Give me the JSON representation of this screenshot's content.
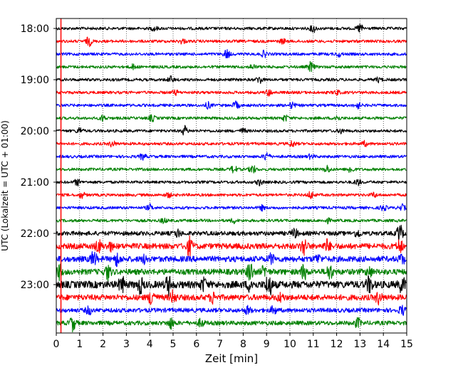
{
  "chart_data": {
    "type": "line",
    "title": "",
    "xlabel": "Zeit  [min]",
    "ylabel": "UTC (Lokalzeit = UTC + 01:00)",
    "xlim": [
      0,
      15
    ],
    "x_ticks": [
      "0",
      "1",
      "2",
      "3",
      "4",
      "5",
      "6",
      "7",
      "8",
      "9",
      "10",
      "11",
      "12",
      "13",
      "14",
      "15"
    ],
    "y_ticks": [
      "18:00",
      "19:00",
      "20:00",
      "21:00",
      "22:00",
      "23:00"
    ],
    "grid": "vertical dotted at each minute",
    "marker_line": {
      "x": 0.2,
      "color": "#ff0000"
    },
    "colors": [
      "#000000",
      "#ff0000",
      "#0000ff",
      "#008000"
    ],
    "series": [
      {
        "time": "18:00",
        "color": "#000000",
        "amplitude": 2,
        "events": [
          {
            "x": 11.0,
            "a": 5
          },
          {
            "x": 13.0,
            "a": 6
          },
          {
            "x": 4.2,
            "a": 3
          }
        ]
      },
      {
        "time": "18:15",
        "color": "#ff0000",
        "amplitude": 2,
        "events": [
          {
            "x": 1.4,
            "a": 6
          },
          {
            "x": 5.4,
            "a": 3
          },
          {
            "x": 9.7,
            "a": 3
          }
        ]
      },
      {
        "time": "18:30",
        "color": "#0000ff",
        "amplitude": 2,
        "events": [
          {
            "x": 7.3,
            "a": 6
          },
          {
            "x": 8.9,
            "a": 4
          },
          {
            "x": 12.1,
            "a": 3
          }
        ]
      },
      {
        "time": "18:45",
        "color": "#008000",
        "amplitude": 2,
        "events": [
          {
            "x": 10.9,
            "a": 7
          },
          {
            "x": 8.4,
            "a": 3
          },
          {
            "x": 3.3,
            "a": 3
          }
        ]
      },
      {
        "time": "19:00",
        "color": "#000000",
        "amplitude": 2,
        "events": [
          {
            "x": 8.7,
            "a": 5
          },
          {
            "x": 4.9,
            "a": 4
          },
          {
            "x": 13.8,
            "a": 3
          }
        ]
      },
      {
        "time": "19:15",
        "color": "#ff0000",
        "amplitude": 2,
        "events": [
          {
            "x": 5.1,
            "a": 3
          },
          {
            "x": 9.1,
            "a": 4
          },
          {
            "x": 12.0,
            "a": 3
          }
        ]
      },
      {
        "time": "19:30",
        "color": "#0000ff",
        "amplitude": 2,
        "events": [
          {
            "x": 6.5,
            "a": 4
          },
          {
            "x": 7.7,
            "a": 5
          },
          {
            "x": 10.1,
            "a": 4
          },
          {
            "x": 12.9,
            "a": 4
          }
        ]
      },
      {
        "time": "19:45",
        "color": "#008000",
        "amplitude": 2,
        "events": [
          {
            "x": 2.0,
            "a": 4
          },
          {
            "x": 4.1,
            "a": 4
          },
          {
            "x": 9.8,
            "a": 4
          },
          {
            "x": 12.0,
            "a": 4
          }
        ]
      },
      {
        "time": "20:00",
        "color": "#000000",
        "amplitude": 2,
        "events": [
          {
            "x": 5.5,
            "a": 6
          },
          {
            "x": 1.0,
            "a": 4
          },
          {
            "x": 8.0,
            "a": 3
          },
          {
            "x": 12.2,
            "a": 3
          }
        ]
      },
      {
        "time": "20:15",
        "color": "#ff0000",
        "amplitude": 2,
        "events": [
          {
            "x": 2.4,
            "a": 4
          },
          {
            "x": 10.1,
            "a": 4
          },
          {
            "x": 13.2,
            "a": 3
          }
        ]
      },
      {
        "time": "20:30",
        "color": "#0000ff",
        "amplitude": 2,
        "events": [
          {
            "x": 3.7,
            "a": 4
          },
          {
            "x": 9.0,
            "a": 6
          },
          {
            "x": 10.9,
            "a": 3
          }
        ]
      },
      {
        "time": "20:45",
        "color": "#008000",
        "amplitude": 2,
        "events": [
          {
            "x": 7.6,
            "a": 5
          },
          {
            "x": 8.4,
            "a": 6
          },
          {
            "x": 11.6,
            "a": 5
          },
          {
            "x": 12.6,
            "a": 5
          }
        ]
      },
      {
        "time": "21:00",
        "color": "#000000",
        "amplitude": 2,
        "events": [
          {
            "x": 0.9,
            "a": 4
          },
          {
            "x": 8.7,
            "a": 4
          },
          {
            "x": 12.9,
            "a": 4
          }
        ]
      },
      {
        "time": "21:15",
        "color": "#ff0000",
        "amplitude": 2,
        "events": [
          {
            "x": 1.1,
            "a": 4
          },
          {
            "x": 4.8,
            "a": 3
          },
          {
            "x": 10.9,
            "a": 5
          },
          {
            "x": 13.6,
            "a": 3
          }
        ]
      },
      {
        "time": "21:30",
        "color": "#0000ff",
        "amplitude": 2,
        "events": [
          {
            "x": 4.0,
            "a": 4
          },
          {
            "x": 8.8,
            "a": 3
          },
          {
            "x": 14.0,
            "a": 4
          },
          {
            "x": 14.8,
            "a": 4
          }
        ]
      },
      {
        "time": "21:45",
        "color": "#008000",
        "amplitude": 2,
        "events": [
          {
            "x": 4.6,
            "a": 3
          },
          {
            "x": 7.6,
            "a": 3
          },
          {
            "x": 11.6,
            "a": 3
          }
        ]
      },
      {
        "time": "22:00",
        "color": "#000000",
        "amplitude": 3,
        "events": [
          {
            "x": 5.2,
            "a": 5
          },
          {
            "x": 10.2,
            "a": 6
          },
          {
            "x": 12.9,
            "a": 5
          },
          {
            "x": 14.7,
            "a": 12
          }
        ]
      },
      {
        "time": "22:15",
        "color": "#ff0000",
        "amplitude": 4,
        "events": [
          {
            "x": 1.8,
            "a": 8
          },
          {
            "x": 5.7,
            "a": 12
          },
          {
            "x": 10.6,
            "a": 12
          },
          {
            "x": 11.6,
            "a": 8
          },
          {
            "x": 14.7,
            "a": 8
          },
          {
            "x": 2.3,
            "a": 5
          }
        ]
      },
      {
        "time": "22:30",
        "color": "#0000ff",
        "amplitude": 4,
        "events": [
          {
            "x": 1.6,
            "a": 10
          },
          {
            "x": 2.6,
            "a": 8
          },
          {
            "x": 3.8,
            "a": 5
          },
          {
            "x": 9.2,
            "a": 6
          },
          {
            "x": 11.2,
            "a": 5
          },
          {
            "x": 14.8,
            "a": 6
          }
        ]
      },
      {
        "time": "22:45",
        "color": "#008000",
        "amplitude": 4,
        "events": [
          {
            "x": 0.1,
            "a": 10
          },
          {
            "x": 2.2,
            "a": 10
          },
          {
            "x": 8.3,
            "a": 14
          },
          {
            "x": 8.9,
            "a": 7
          },
          {
            "x": 10.6,
            "a": 10
          },
          {
            "x": 11.7,
            "a": 10
          },
          {
            "x": 13.4,
            "a": 6
          }
        ]
      },
      {
        "time": "23:00",
        "color": "#000000",
        "amplitude": 5,
        "events": [
          {
            "x": 2.8,
            "a": 10
          },
          {
            "x": 3.6,
            "a": 10
          },
          {
            "x": 4.8,
            "a": 12
          },
          {
            "x": 6.3,
            "a": 8
          },
          {
            "x": 8.3,
            "a": 8
          },
          {
            "x": 9.1,
            "a": 16
          },
          {
            "x": 13.4,
            "a": 10
          },
          {
            "x": 14.8,
            "a": 10
          }
        ]
      },
      {
        "time": "23:15",
        "color": "#ff0000",
        "amplitude": 4,
        "events": [
          {
            "x": 4.1,
            "a": 12
          },
          {
            "x": 5.0,
            "a": 8
          },
          {
            "x": 6.7,
            "a": 7
          },
          {
            "x": 9.6,
            "a": 5
          },
          {
            "x": 13.8,
            "a": 8
          }
        ]
      },
      {
        "time": "23:30",
        "color": "#0000ff",
        "amplitude": 3,
        "events": [
          {
            "x": 1.4,
            "a": 5
          },
          {
            "x": 8.2,
            "a": 5
          },
          {
            "x": 9.3,
            "a": 5
          },
          {
            "x": 14.8,
            "a": 6
          }
        ]
      },
      {
        "time": "23:45",
        "color": "#008000",
        "amplitude": 3,
        "events": [
          {
            "x": 0.7,
            "a": 10
          },
          {
            "x": 4.9,
            "a": 7
          },
          {
            "x": 6.2,
            "a": 5
          },
          {
            "x": 12.9,
            "a": 6
          }
        ]
      }
    ]
  }
}
